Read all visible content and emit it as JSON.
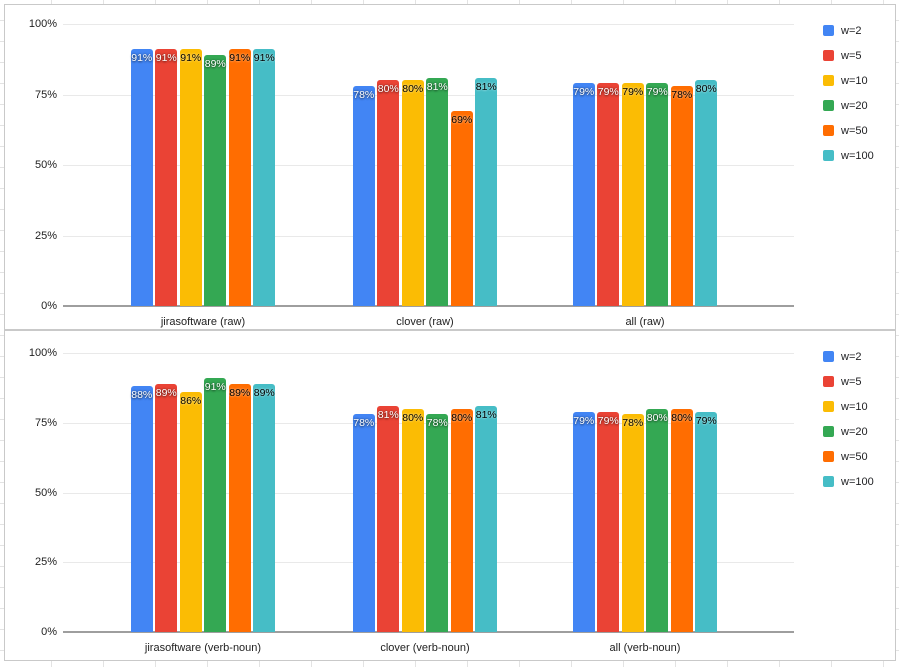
{
  "page": {
    "background_color": "#ffffff",
    "sheet_grid_color": "#e3e3e3",
    "panel_border_color": "#c9c9c9",
    "gridline_color": "#e9e9e9",
    "axisline_color": "#9e9e9e"
  },
  "chart_data": [
    {
      "type": "bar",
      "title": "",
      "categories": [
        "jirasoftware (raw)",
        "clover (raw)",
        "all (raw)"
      ],
      "series": [
        {
          "name": "w=2",
          "color": "#4285F4",
          "label_color": "#ffffff",
          "values": [
            91,
            78,
            79
          ]
        },
        {
          "name": "w=5",
          "color": "#EA4335",
          "label_color": "#ffffff",
          "values": [
            91,
            80,
            79
          ]
        },
        {
          "name": "w=10",
          "color": "#FBBC04",
          "label_color": "#000000",
          "values": [
            91,
            80,
            79
          ]
        },
        {
          "name": "w=20",
          "color": "#34A853",
          "label_color": "#ffffff",
          "values": [
            89,
            81,
            79
          ]
        },
        {
          "name": "w=50",
          "color": "#FF6D01",
          "label_color": "#000000",
          "values": [
            91,
            69,
            78
          ]
        },
        {
          "name": "w=100",
          "color": "#46BDC6",
          "label_color": "#000000",
          "values": [
            91,
            81,
            80
          ]
        }
      ],
      "value_suffix": "%",
      "y_ticks": [
        {
          "value": 0,
          "label": "0%"
        },
        {
          "value": 25,
          "label": "25%"
        },
        {
          "value": 50,
          "label": "50%"
        },
        {
          "value": 75,
          "label": "75%"
        },
        {
          "value": 100,
          "label": "100%"
        }
      ],
      "ylim": [
        0,
        100
      ],
      "grid": true,
      "legend_position": "right",
      "data_labels_shown": true
    },
    {
      "type": "bar",
      "title": "",
      "categories": [
        "jirasoftware (verb-noun)",
        "clover (verb-noun)",
        "all (verb-noun)"
      ],
      "series": [
        {
          "name": "w=2",
          "color": "#4285F4",
          "label_color": "#ffffff",
          "values": [
            88,
            78,
            79
          ]
        },
        {
          "name": "w=5",
          "color": "#EA4335",
          "label_color": "#ffffff",
          "values": [
            89,
            81,
            79
          ]
        },
        {
          "name": "w=10",
          "color": "#FBBC04",
          "label_color": "#000000",
          "values": [
            86,
            80,
            78
          ]
        },
        {
          "name": "w=20",
          "color": "#34A853",
          "label_color": "#ffffff",
          "values": [
            91,
            78,
            80
          ]
        },
        {
          "name": "w=50",
          "color": "#FF6D01",
          "label_color": "#000000",
          "values": [
            89,
            80,
            80
          ]
        },
        {
          "name": "w=100",
          "color": "#46BDC6",
          "label_color": "#000000",
          "values": [
            89,
            81,
            79
          ]
        }
      ],
      "value_suffix": "%",
      "y_ticks": [
        {
          "value": 0,
          "label": "0%"
        },
        {
          "value": 25,
          "label": "25%"
        },
        {
          "value": 50,
          "label": "50%"
        },
        {
          "value": 75,
          "label": "75%"
        },
        {
          "value": 100,
          "label": "100%"
        }
      ],
      "ylim": [
        0,
        100
      ],
      "grid": true,
      "legend_position": "right",
      "data_labels_shown": true
    }
  ]
}
